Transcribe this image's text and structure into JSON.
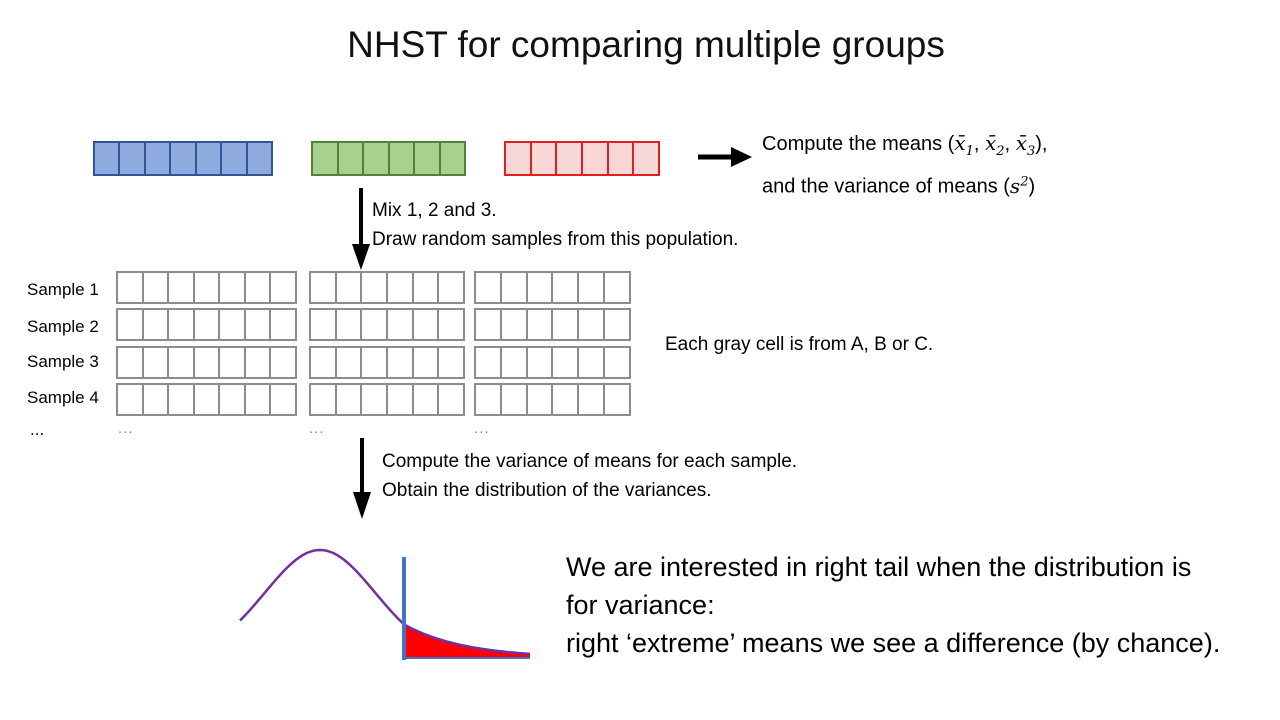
{
  "title": "NHST for comparing multiple groups",
  "colors": {
    "blue_fill": "#8faadc",
    "blue_border": "#2f5597",
    "green_fill": "#a9d18e",
    "green_border": "#548235",
    "red_fill": "#f8d7d7",
    "red_border": "#e02020",
    "gray_border": "#8c8c8c",
    "curve": "#7030a0",
    "tail_fill": "#ff0000",
    "cutoff_line": "#4472c4"
  },
  "compute_means": {
    "line1_prefix": "Compute the means (",
    "x": "x̄",
    "sub1": "1",
    "sub2": "2",
    "sub3": "3",
    "sep": ", ",
    "line1_suffix": "),",
    "line2_prefix": "and the variance of means (",
    "s": "s",
    "sup2": "2",
    "line2_suffix": ")"
  },
  "mix_text": {
    "line1": "Mix 1, 2 and 3.",
    "line2": "Draw random samples from this population."
  },
  "samples": {
    "labels": [
      "Sample 1",
      "Sample 2",
      "Sample 3",
      "Sample 4"
    ],
    "ellipsis_label": "...",
    "continuation": "...",
    "note": "Each gray cell is from A, B or C."
  },
  "variance_text": {
    "line1": "Compute the variance of means for each sample.",
    "line2": "Obtain the distribution of the variances."
  },
  "conclusion": {
    "line1": "We are interested in right tail when the distribution is",
    "line2": "for variance:",
    "line3": "right ‘extreme’ means we see a difference (by chance)."
  }
}
